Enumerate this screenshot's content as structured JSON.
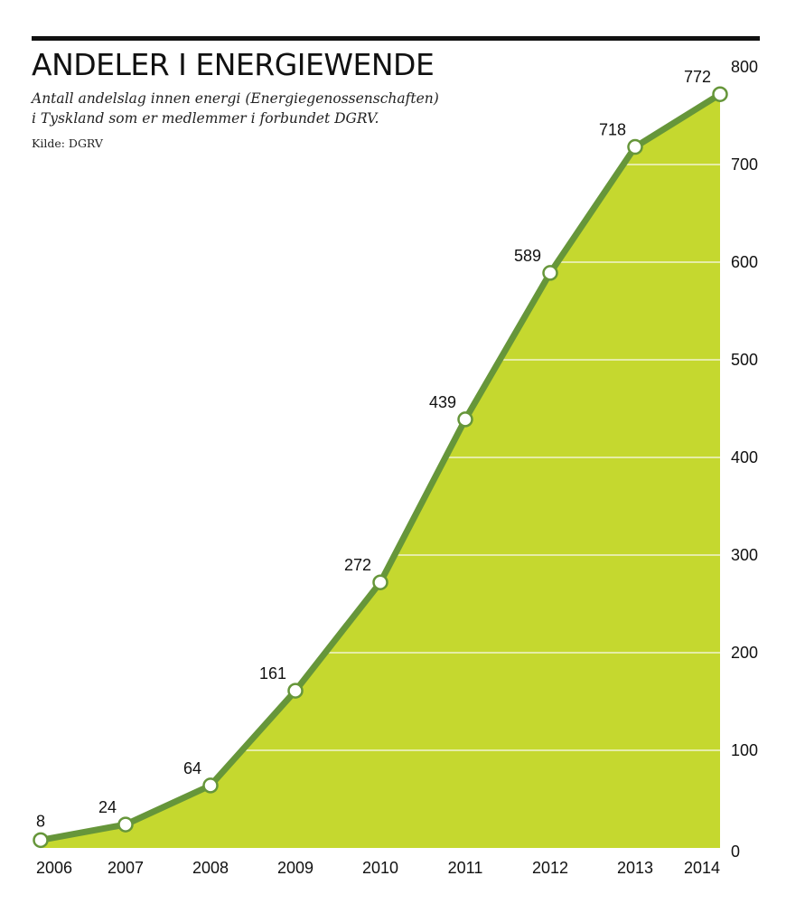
{
  "chart_data": {
    "type": "area",
    "title": "ANDELER I ENERGIEWENDE",
    "subtitle_lines": [
      "Antall andelslag innen energi (Energiegenossenschaften)",
      "i Tyskland som er medlemmer i forbundet DGRV."
    ],
    "source": "Kilde: DGRV",
    "x": [
      "2006",
      "2007",
      "2008",
      "2009",
      "2010",
      "2011",
      "2012",
      "2013",
      "2014"
    ],
    "values": [
      8,
      24,
      64,
      161,
      272,
      439,
      589,
      718,
      772
    ],
    "data_labels": [
      "8",
      "24",
      "64",
      "161",
      "272",
      "439",
      "589",
      "718",
      "772"
    ],
    "ylim": [
      0,
      800
    ],
    "yticks": [
      0,
      100,
      200,
      300,
      400,
      500,
      600,
      700,
      800
    ],
    "ytick_labels": [
      "0",
      "100",
      "200",
      "300",
      "400",
      "500",
      "600",
      "700",
      "800"
    ],
    "y_axis_position": "right",
    "grid": true,
    "xlabel": "",
    "ylabel": "",
    "colors": {
      "fill": "#c5d82f",
      "line": "#66963a",
      "marker_fill": "#ffffff",
      "grid": "#f2f4cf",
      "rule": "#111111"
    }
  }
}
